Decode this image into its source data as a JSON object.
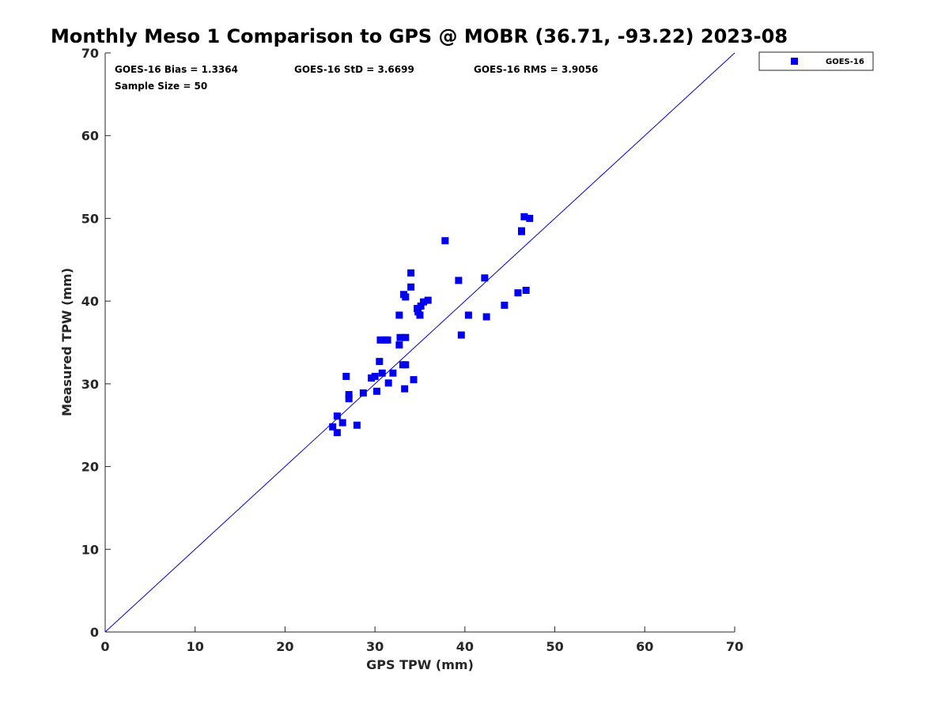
{
  "chart_data": {
    "type": "scatter",
    "title": "Monthly Meso 1 Comparison to GPS @ MOBR (36.71, -93.22) 2023-08",
    "xlabel": "GPS TPW (mm)",
    "ylabel": "Measured TPW (mm)",
    "xlim": [
      0,
      70
    ],
    "ylim": [
      0,
      70
    ],
    "xticks": [
      0,
      10,
      20,
      30,
      40,
      50,
      60,
      70
    ],
    "yticks": [
      0,
      10,
      20,
      30,
      40,
      50,
      60,
      70
    ],
    "grid": false,
    "legend_position": "outside-top-right",
    "reference_line": {
      "from": [
        0,
        0
      ],
      "to": [
        70,
        70
      ],
      "color": "#0000cc"
    },
    "stats": {
      "bias": "GOES-16 Bias = 1.3364",
      "std": "GOES-16 StD = 3.6699",
      "rms": "GOES-16 RMS = 3.9056",
      "sample": "Sample Size = 50"
    },
    "series": [
      {
        "name": "GOES-16",
        "color": "#0000ee",
        "marker": "square",
        "points": [
          [
            25.3,
            24.8
          ],
          [
            25.8,
            24.1
          ],
          [
            25.8,
            26.1
          ],
          [
            26.4,
            25.3
          ],
          [
            26.8,
            30.9
          ],
          [
            27.1,
            28.7
          ],
          [
            27.1,
            28.2
          ],
          [
            28.0,
            25.0
          ],
          [
            28.7,
            28.9
          ],
          [
            29.6,
            30.7
          ],
          [
            30.0,
            30.9
          ],
          [
            30.2,
            29.1
          ],
          [
            30.5,
            32.7
          ],
          [
            30.6,
            35.3
          ],
          [
            30.8,
            31.3
          ],
          [
            31.1,
            35.3
          ],
          [
            31.4,
            35.3
          ],
          [
            31.5,
            30.1
          ],
          [
            32.0,
            31.3
          ],
          [
            32.7,
            38.3
          ],
          [
            32.7,
            34.7
          ],
          [
            32.8,
            35.6
          ],
          [
            33.1,
            32.3
          ],
          [
            33.2,
            40.8
          ],
          [
            33.4,
            35.6
          ],
          [
            33.4,
            32.3
          ],
          [
            33.3,
            29.4
          ],
          [
            33.4,
            40.5
          ],
          [
            34.0,
            43.4
          ],
          [
            34.0,
            41.7
          ],
          [
            34.3,
            30.5
          ],
          [
            34.7,
            39.1
          ],
          [
            34.8,
            38.7
          ],
          [
            35.0,
            38.3
          ],
          [
            35.1,
            39.4
          ],
          [
            35.4,
            39.9
          ],
          [
            35.9,
            40.1
          ],
          [
            37.8,
            47.3
          ],
          [
            39.3,
            42.5
          ],
          [
            39.6,
            35.9
          ],
          [
            40.4,
            38.3
          ],
          [
            42.2,
            42.8
          ],
          [
            42.4,
            38.1
          ],
          [
            44.4,
            39.5
          ],
          [
            45.9,
            41.0
          ],
          [
            46.3,
            48.5
          ],
          [
            46.6,
            50.2
          ],
          [
            46.8,
            41.3
          ],
          [
            47.2,
            50.0
          ],
          [
            46.3,
            48.4
          ]
        ]
      }
    ]
  }
}
